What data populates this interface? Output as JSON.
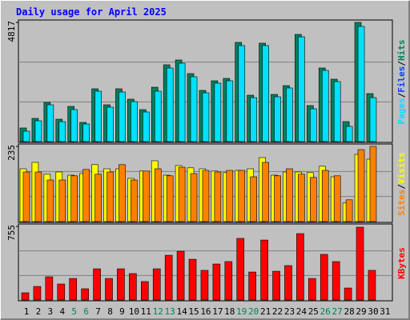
{
  "chart_data": {
    "type": "bar",
    "title": "Daily usage for April 2025",
    "separator": "/",
    "categories": [
      "1",
      "2",
      "3",
      "4",
      "5",
      "6",
      "7",
      "8",
      "9",
      "10",
      "11",
      "12",
      "13",
      "14",
      "15",
      "16",
      "17",
      "18",
      "19",
      "20",
      "21",
      "22",
      "23",
      "24",
      "25",
      "26",
      "27",
      "28",
      "29",
      "30",
      "31"
    ],
    "weekend_indices": [
      4,
      5,
      11,
      12,
      18,
      19,
      25,
      26
    ],
    "weekend_color": "#00805c",
    "panels": [
      {
        "ylim": [
          0,
          4817
        ],
        "yticks": [
          4817
        ],
        "series": [
          {
            "name": "Pages",
            "color": "#00e0ff",
            "values": [
              420,
              840,
              1487,
              808,
              1293,
              711,
              2037,
              1390,
              2004,
              1616,
              1196,
              2037,
              2974,
              3168,
              2619,
              1972,
              2360,
              2457,
              3879,
              1778,
              3879,
              1810,
              2166,
              4235,
              1325,
              2877,
              2425,
              614,
              4655,
              1778,
              null
            ]
          },
          {
            "name": "Files",
            "color": "#0040ff",
            "values": [
              null,
              null,
              null,
              null,
              null,
              null,
              null,
              null,
              null,
              null,
              null,
              null,
              null,
              null,
              null,
              null,
              null,
              null,
              null,
              null,
              null,
              null,
              null,
              null,
              null,
              null,
              null,
              null,
              null,
              null,
              null
            ]
          },
          {
            "name": "Hits",
            "color": "#00805c",
            "values": [
              550,
              938,
              1584,
              905,
              1422,
              776,
              2134,
              1487,
              2134,
              1713,
              1293,
              2198,
              3104,
              3298,
              2748,
              2069,
              2457,
              2554,
              4009,
              1875,
              3977,
              1907,
              2263,
              4332,
              1455,
              2974,
              2522,
              808,
              4817,
              1940,
              null
            ]
          }
        ]
      },
      {
        "ylim": [
          0,
          235
        ],
        "yticks": [
          235
        ],
        "series": [
          {
            "name": "Sites",
            "color": "#ff8000",
            "values": [
              155,
              155,
              130,
              130,
              143,
              163,
              148,
              155,
              178,
              130,
              158,
              165,
              143,
              170,
              150,
              160,
              155,
              160,
              160,
              140,
              185,
              143,
              165,
              148,
              138,
              160,
              143,
              68,
              225,
              235,
              null
            ]
          },
          {
            "name": "Visits",
            "color": "#ffff00",
            "values": [
              165,
              185,
              148,
              155,
              145,
              150,
              178,
              165,
              165,
              135,
              158,
              190,
              145,
              175,
              168,
              165,
              158,
              153,
              160,
              165,
              200,
              145,
              155,
              155,
              153,
              173,
              140,
              58,
              210,
              195,
              null
            ]
          }
        ]
      },
      {
        "ylim": [
          0,
          755
        ],
        "yticks": [
          755
        ],
        "series": [
          {
            "name": "KBytes",
            "color": "#ff0000",
            "values": [
              74,
              139,
              238,
              164,
              221,
              115,
              320,
              221,
              320,
              271,
              189,
              320,
              459,
              500,
              418,
              304,
              369,
              394,
              632,
              287,
              615,
              295,
              353,
              681,
              221,
              468,
              394,
              123,
              747,
              304,
              null
            ]
          }
        ]
      }
    ]
  }
}
